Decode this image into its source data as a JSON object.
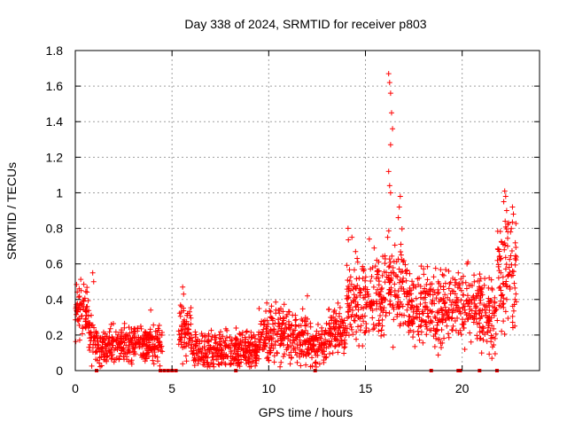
{
  "chart_data": {
    "type": "scatter",
    "title": "Day 338 of 2024, SRMTID for receiver p803",
    "xlabel": "GPS time / hours",
    "ylabel": "SRMTID / TECUs",
    "xlim": [
      0,
      24
    ],
    "ylim": [
      0,
      1.8
    ],
    "xticks": [
      0,
      5,
      10,
      15,
      20
    ],
    "xtick_labels": [
      "0",
      "5",
      "10",
      "15",
      "20"
    ],
    "yticks": [
      0,
      0.2,
      0.4,
      0.6,
      0.8,
      1,
      1.2,
      1.4,
      1.6,
      1.8
    ],
    "ytick_labels": [
      "0",
      "0.2",
      "0.4",
      "0.6",
      "0.8",
      "1",
      "1.2",
      "1.4",
      "1.6",
      "1.8"
    ],
    "grid": true,
    "marker": "plus",
    "series_color": "#ff0000",
    "series": [
      {
        "name": "SRMTID",
        "description": "dense plus-marker samples; representative values read from the plot",
        "segments": [
          {
            "x0": 0.0,
            "x1": 0.7,
            "base": 0.32,
            "spread": 0.12
          },
          {
            "x0": 0.7,
            "x1": 1.1,
            "base": 0.18,
            "spread": 0.1
          },
          {
            "x0": 1.1,
            "x1": 4.5,
            "base": 0.15,
            "spread": 0.08
          },
          {
            "x0": 5.3,
            "x1": 6.0,
            "base": 0.22,
            "spread": 0.12
          },
          {
            "x0": 6.0,
            "x1": 9.5,
            "base": 0.12,
            "spread": 0.08
          },
          {
            "x0": 9.5,
            "x1": 12.0,
            "base": 0.2,
            "spread": 0.12
          },
          {
            "x0": 12.0,
            "x1": 13.0,
            "base": 0.14,
            "spread": 0.08
          },
          {
            "x0": 13.0,
            "x1": 14.0,
            "base": 0.22,
            "spread": 0.1
          },
          {
            "x0": 14.0,
            "x1": 16.0,
            "base": 0.42,
            "spread": 0.18
          },
          {
            "x0": 16.0,
            "x1": 17.2,
            "base": 0.45,
            "spread": 0.2
          },
          {
            "x0": 17.2,
            "x1": 21.0,
            "base": 0.35,
            "spread": 0.15
          },
          {
            "x0": 21.0,
            "x1": 21.8,
            "base": 0.3,
            "spread": 0.15
          },
          {
            "x0": 21.8,
            "x1": 22.8,
            "base": 0.55,
            "spread": 0.25
          }
        ],
        "peaks": [
          {
            "x": 0.2,
            "y": 0.46
          },
          {
            "x": 0.3,
            "y": 0.45
          },
          {
            "x": 0.9,
            "y": 0.55
          },
          {
            "x": 0.95,
            "y": 0.5
          },
          {
            "x": 3.9,
            "y": 0.34
          },
          {
            "x": 5.55,
            "y": 0.47
          },
          {
            "x": 5.6,
            "y": 0.43
          },
          {
            "x": 9.9,
            "y": 0.38
          },
          {
            "x": 12.0,
            "y": 0.42
          },
          {
            "x": 14.1,
            "y": 0.8
          },
          {
            "x": 14.3,
            "y": 0.75
          },
          {
            "x": 15.2,
            "y": 0.74
          },
          {
            "x": 16.2,
            "y": 1.67
          },
          {
            "x": 16.25,
            "y": 1.62
          },
          {
            "x": 16.3,
            "y": 1.56
          },
          {
            "x": 16.35,
            "y": 1.45
          },
          {
            "x": 16.4,
            "y": 1.36
          },
          {
            "x": 16.3,
            "y": 1.27
          },
          {
            "x": 16.2,
            "y": 1.12
          },
          {
            "x": 16.25,
            "y": 1.04
          },
          {
            "x": 16.3,
            "y": 1.0
          },
          {
            "x": 16.15,
            "y": 0.75
          },
          {
            "x": 16.8,
            "y": 0.98
          },
          {
            "x": 16.75,
            "y": 0.92
          },
          {
            "x": 16.7,
            "y": 0.86
          },
          {
            "x": 16.85,
            "y": 0.65
          },
          {
            "x": 19.8,
            "y": 0.55
          },
          {
            "x": 20.3,
            "y": 0.61
          },
          {
            "x": 20.25,
            "y": 0.6
          },
          {
            "x": 22.2,
            "y": 1.01
          },
          {
            "x": 22.25,
            "y": 0.98
          },
          {
            "x": 22.15,
            "y": 0.95
          },
          {
            "x": 22.3,
            "y": 0.9
          },
          {
            "x": 22.6,
            "y": 0.92
          },
          {
            "x": 22.65,
            "y": 0.88
          },
          {
            "x": 22.4,
            "y": 0.83
          },
          {
            "x": 22.5,
            "y": 0.78
          },
          {
            "x": 22.35,
            "y": 0.7
          },
          {
            "x": 22.0,
            "y": 0.55
          }
        ],
        "zero_markers": [
          1.1,
          4.4,
          4.6,
          4.8,
          5.0,
          5.2,
          8.3,
          12.4,
          18.4,
          19.8,
          19.9,
          20.9,
          21.8
        ]
      }
    ]
  }
}
